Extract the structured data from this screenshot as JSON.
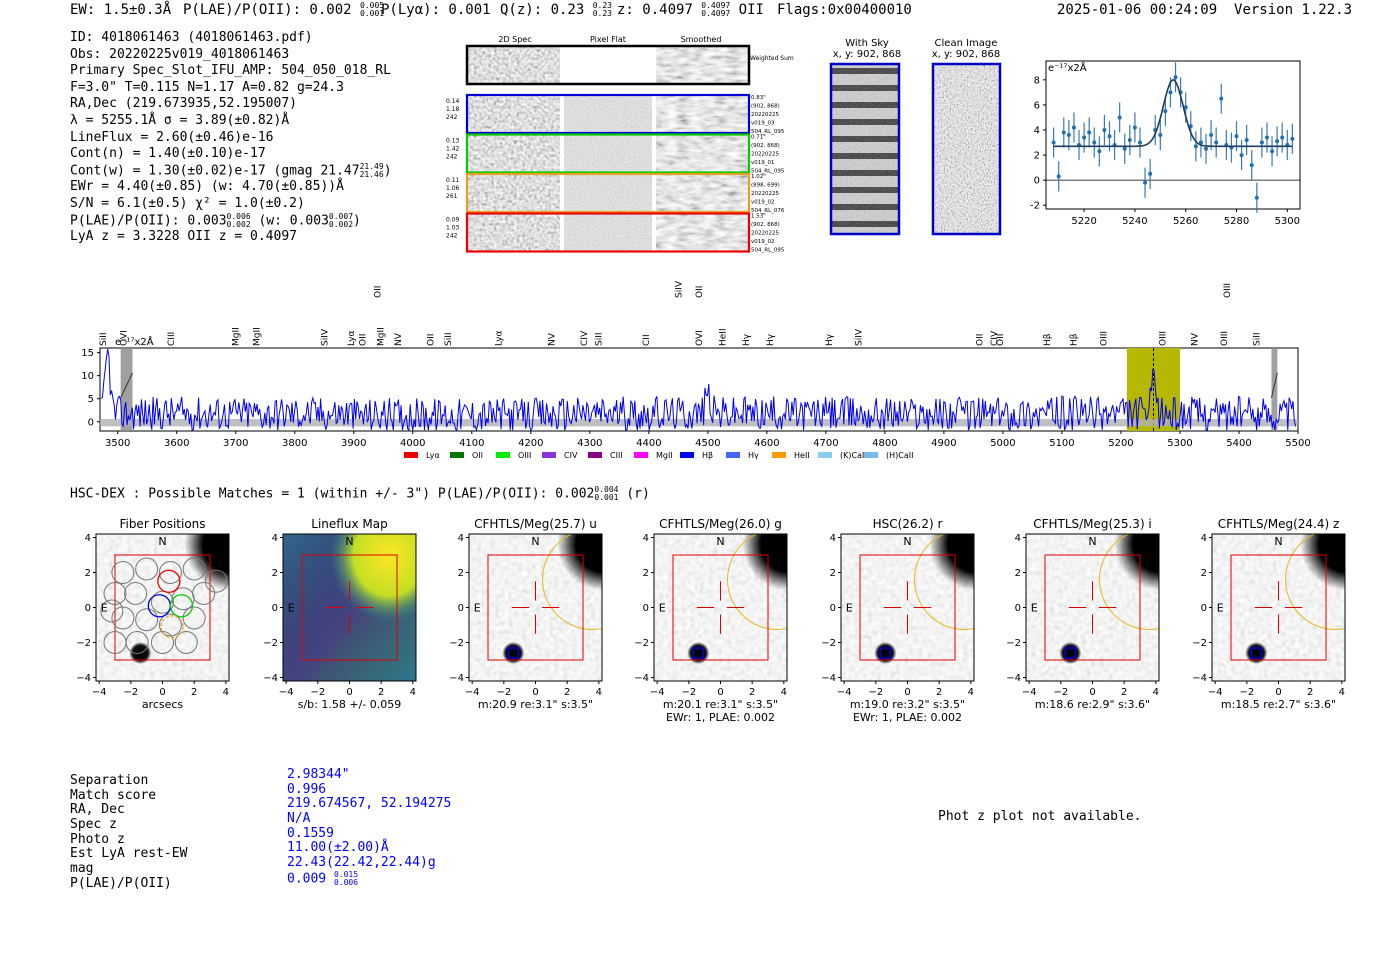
{
  "header": {
    "ew": "EW: 1.5±0.3Å",
    "plae_label": "P(LAE)/P(OII): 0.002",
    "plae_up": "0.005",
    "plae_lo": "0.001",
    "plya": "P(Lyα): 0.001",
    "qz_label": "Q(z): 0.23",
    "qz_up": "0.23",
    "qz_lo": "0.23",
    "z_label": "z: 0.4097",
    "z_up": "0.4097",
    "z_lo": "0.4097",
    "z_line": "OII",
    "flags": "Flags:0x00400010",
    "timestamp": "2025-01-06 00:24:09",
    "version": "Version 1.22.3"
  },
  "info": {
    "id": "ID: 4018061463 (4018061463.pdf)",
    "obs": "Obs: 20220225v019_4018061463",
    "slot": "Primary Spec_Slot_IFU_AMP: 504_050_018_RL",
    "fwhm": "F=3.0\"  T=0.115  N=1.17  A=0.82  g=24.3",
    "radec": "RA,Dec (219.673935,52.195007)",
    "lambda": "λ = 5255.1Å   σ = 3.89(±0.82)Å",
    "lineflux": "LineFlux = 2.60(±0.46)e-16",
    "contn": "Cont(n) = 1.40(±0.10)e-17",
    "contw": "Cont(w) = 1.30(±0.02)e-17 (gmag 21.47",
    "gmag_up": "21.49",
    "gmag_lo": "21.46",
    "gmag_close": ")",
    "ewr": "EWr = 4.40(±0.85) (w: 4.70(±0.85))Å",
    "sn": "S/N = 6.1(±0.5)  χ² = 1.0(±0.2)",
    "plae": "P(LAE)/P(OII): 0.003",
    "plae_up": "0.006",
    "plae_lo": "0.002",
    "plae_w": "(w: 0.003",
    "plae_w_up": "0.007",
    "plae_w_lo": "0.002",
    "plae_w_close": ")",
    "lyaz": "LyA z = 3.3228   OII z = 0.4097"
  },
  "cutouts": {
    "col_headers": [
      "2D Spec",
      "Pixel Flat",
      "Smoothed"
    ],
    "weighted_label": "Weighted Sum",
    "rows": [
      {
        "left": [
          "0.14",
          "1.18",
          "242"
        ],
        "right": [
          "0.83\"",
          "(902, 868)",
          "20220225",
          "v019_03",
          "504_RL_095"
        ],
        "color": "#0000dd"
      },
      {
        "left": [
          "0.13",
          "1.42",
          "242"
        ],
        "right": [
          "0.71\"",
          "(902, 868)",
          "20220225",
          "v019_01",
          "504_RL_095"
        ],
        "color": "#00cc00"
      },
      {
        "left": [
          "0.11",
          "1.06",
          "261"
        ],
        "right": [
          "1.02\"",
          "(898, 699)",
          "20220225",
          "v019_02",
          "504_RL_076"
        ],
        "color": "#e8a020"
      },
      {
        "left": [
          "0.09",
          "1.03",
          "242"
        ],
        "right": [
          "1.53\"",
          "(902, 868)",
          "20220225",
          "v019_02",
          "504_RL_095"
        ],
        "color": "#ee0000"
      }
    ]
  },
  "sky": {
    "with_sky": "With Sky",
    "with_sky_xy": "x, y: 902, 868",
    "clean": "Clean Image",
    "clean_xy": "x, y: 902, 868"
  },
  "zoom_chart": {
    "unit_label": "e⁻¹⁷x2Å"
  },
  "full_chart": {
    "unit_label": "e⁻¹⁷x2Å",
    "lines_top": [
      {
        "name": "OII",
        "wl": 3940,
        "color": "#00cc00"
      },
      {
        "name": "SiIV",
        "wl": 4450,
        "color": "#e8a020"
      },
      {
        "name": "OII",
        "wl": 4485,
        "color": "#3355dd"
      },
      {
        "name": "OIII",
        "wl": 5380,
        "color": "#0000dd"
      }
    ],
    "lines_bottom": [
      {
        "name": "SiII",
        "wl": 3475,
        "color": "#8800cc"
      },
      {
        "name": "OVI",
        "wl": 3510,
        "color": "#8800cc"
      },
      {
        "name": "CIII",
        "wl": 3590,
        "color": "#cc0000"
      },
      {
        "name": "MgII",
        "wl": 3700,
        "color": "#88ccee"
      },
      {
        "name": "MgII",
        "wl": 3735,
        "color": "#88ccee"
      },
      {
        "name": "SiIV",
        "wl": 3850,
        "color": "#8800cc"
      },
      {
        "name": "Lyα",
        "wl": 3895,
        "color": "#e8a020"
      },
      {
        "name": "OII",
        "wl": 3915,
        "color": "#00cc00"
      },
      {
        "name": "MgII",
        "wl": 3945,
        "color": "#008800"
      },
      {
        "name": "NV",
        "wl": 3975,
        "color": "#e8a020"
      },
      {
        "name": "OII",
        "wl": 4030,
        "color": "#0000dd"
      },
      {
        "name": "SiII",
        "wl": 4060,
        "color": "#e8a020"
      },
      {
        "name": "Lyα",
        "wl": 4145,
        "color": "#8800cc"
      },
      {
        "name": "NV",
        "wl": 4235,
        "color": "#8800cc"
      },
      {
        "name": "CIV",
        "wl": 4290,
        "color": "#8800cc"
      },
      {
        "name": "SiII",
        "wl": 4315,
        "color": "#8800cc"
      },
      {
        "name": "CII",
        "wl": 4395,
        "color": "#ee00aa"
      },
      {
        "name": "OVI",
        "wl": 4485,
        "color": "#cc0000"
      },
      {
        "name": "HeII",
        "wl": 4525,
        "color": "#660000"
      },
      {
        "name": "Hγ",
        "wl": 4565,
        "color": "#00cc00"
      },
      {
        "name": "Hγ",
        "wl": 4605,
        "color": "#00cc00"
      },
      {
        "name": "Hγ",
        "wl": 4705,
        "color": "#0000dd"
      },
      {
        "name": "SiIV",
        "wl": 4755,
        "color": "#8800cc"
      },
      {
        "name": "OII",
        "wl": 4960,
        "color": "#88ccee"
      },
      {
        "name": "CIV",
        "wl": 4985,
        "color": "#e8a020"
      },
      {
        "name": "OII",
        "wl": 4995,
        "color": "#88ccee"
      },
      {
        "name": "Hβ",
        "wl": 5075,
        "color": "#00cc00"
      },
      {
        "name": "Hβ",
        "wl": 5120,
        "color": "#00cc00"
      },
      {
        "name": "OIII",
        "wl": 5170,
        "color": "#00cc00"
      },
      {
        "name": "OIII",
        "wl": 5270,
        "color": "#00cc00"
      },
      {
        "name": "NV",
        "wl": 5325,
        "color": "#cc0000"
      },
      {
        "name": "OIII",
        "wl": 5375,
        "color": "#0000dd"
      },
      {
        "name": "SiII",
        "wl": 5430,
        "color": "#cc0000"
      }
    ],
    "legend": [
      {
        "name": "Lyα",
        "color": "#ee0000"
      },
      {
        "name": "OII",
        "color": "#007700"
      },
      {
        "name": "OIII",
        "color": "#00ee00"
      },
      {
        "name": "CIV",
        "color": "#8833dd"
      },
      {
        "name": "CIII",
        "color": "#880088"
      },
      {
        "name": "MgII",
        "color": "#ff00ff"
      },
      {
        "name": "Hβ",
        "color": "#0000ff"
      },
      {
        "name": "Hγ",
        "color": "#4466ff"
      },
      {
        "name": "HeII",
        "color": "#ff9900"
      },
      {
        "name": "(K)CaII",
        "color": "#88ccee"
      },
      {
        "name": "(H)CaII",
        "color": "#77bbee"
      }
    ]
  },
  "hsc": {
    "line": "HSC-DEX : Possible Matches = 1 (within +/- 3\")  P(LAE)/P(OII): 0.002",
    "up": "0.004",
    "lo": "0.001",
    "filter": "(r)"
  },
  "stamps": [
    {
      "title": "Fiber Positions",
      "cap1": "arcsecs",
      "cap2": ""
    },
    {
      "title": "Lineflux Map",
      "cap1": "s/b: 1.58 +/- 0.059",
      "cap2": ""
    },
    {
      "title": "CFHTLS/Meg(25.7) u",
      "cap1": "m:20.9  re:3.1\"  s:3.5\"",
      "cap2": ""
    },
    {
      "title": "CFHTLS/Meg(26.0) g",
      "cap1": "m:20.1  re:3.1\"  s:3.5\"",
      "cap2": "EWr: 1, PLAE: 0.002"
    },
    {
      "title": "HSC(26.2) r",
      "cap1": "m:19.0  re:3.2\"  s:3.5\"",
      "cap2": "EWr: 1, PLAE: 0.002"
    },
    {
      "title": "CFHTLS/Meg(25.3) i",
      "cap1": "m:18.6  re:2.9\"  s:3.6\"",
      "cap2": ""
    },
    {
      "title": "CFHTLS/Meg(24.4) z",
      "cap1": "m:18.5  re:2.7\"  s:3.6\"",
      "cap2": ""
    }
  ],
  "stamp_labels": {
    "north": "N",
    "east": "E"
  },
  "match": {
    "labels": [
      "Separation",
      "Match score",
      "RA, Dec",
      "Spec z",
      "Photo z",
      "Est LyA rest-EW",
      "mag",
      "P(LAE)/P(OII)"
    ],
    "values": [
      "2.98344\"",
      "0.996",
      "219.674567, 52.194275",
      "N/A",
      "0.1559",
      "11.00(±2.00)Å",
      "22.43(22.42,22.44)g"
    ],
    "plae": "0.009",
    "plae_up": "0.015",
    "plae_lo": "0.006"
  },
  "photz_msg": "Phot z plot not available.",
  "colors": {
    "accent": "#0000ff",
    "highlight": "#b5b800",
    "sky_border": "#0000cc",
    "red_box": "#dd0000"
  },
  "chart_data": [
    {
      "type": "scatter",
      "title": "",
      "xlabel": "",
      "ylabel": "e⁻¹⁷x2Å",
      "xlim": [
        5205,
        5305
      ],
      "ylim": [
        -2.3,
        9.5
      ],
      "xticks": [
        5220,
        5240,
        5260,
        5280,
        5300
      ],
      "yticks": [
        -2,
        0,
        2,
        4,
        6,
        8
      ],
      "x": [
        5208,
        5210,
        5212,
        5214,
        5216,
        5218,
        5220,
        5222,
        5224,
        5226,
        5228,
        5230,
        5232,
        5234,
        5236,
        5238,
        5240,
        5242,
        5244,
        5246,
        5248,
        5250,
        5252,
        5254,
        5256,
        5258,
        5260,
        5262,
        5264,
        5266,
        5268,
        5270,
        5272,
        5274,
        5276,
        5278,
        5280,
        5282,
        5284,
        5286,
        5288,
        5290,
        5292,
        5294,
        5296,
        5298,
        5300,
        5302
      ],
      "y": [
        3.0,
        0.3,
        3.8,
        3.6,
        4.2,
        2.8,
        3.4,
        3.8,
        3.0,
        2.3,
        4.0,
        3.5,
        2.8,
        5.0,
        2.5,
        3.2,
        4.2,
        3.0,
        -0.2,
        0.5,
        4.0,
        3.6,
        5.5,
        7.0,
        8.2,
        7.0,
        5.8,
        4.3,
        2.7,
        3.0,
        2.5,
        3.6,
        3.0,
        6.5,
        2.8,
        2.6,
        3.5,
        2.0,
        3.2,
        1.2,
        -1.4,
        3.0,
        3.4,
        2.3,
        3.1,
        3.4,
        2.8,
        3.3
      ],
      "fit": {
        "baseline": 2.7,
        "amplitude": 5.3,
        "center": 5255.1,
        "sigma": 3.89
      }
    },
    {
      "type": "line",
      "title": "",
      "xlabel": "",
      "ylabel": "e⁻¹⁷x2Å",
      "xlim": [
        3470,
        5500
      ],
      "ylim": [
        -2,
        16
      ],
      "xticks": [
        3500,
        3600,
        3700,
        3800,
        3900,
        4000,
        4100,
        4200,
        4300,
        4400,
        4500,
        4600,
        4700,
        4800,
        4900,
        5000,
        5100,
        5200,
        5300,
        5400,
        5500
      ],
      "yticks": [
        0,
        5,
        10,
        15
      ],
      "highlight_band": [
        5210,
        5300
      ],
      "line_center": 5255.1,
      "masked_bands": [
        [
          3505,
          3525
        ],
        [
          5455,
          5465
        ]
      ],
      "peaks": [
        {
          "x": 3483,
          "y": 15.5
        },
        {
          "x": 4500,
          "y": 6.5
        },
        {
          "x": 5255,
          "y": 8
        }
      ]
    }
  ]
}
